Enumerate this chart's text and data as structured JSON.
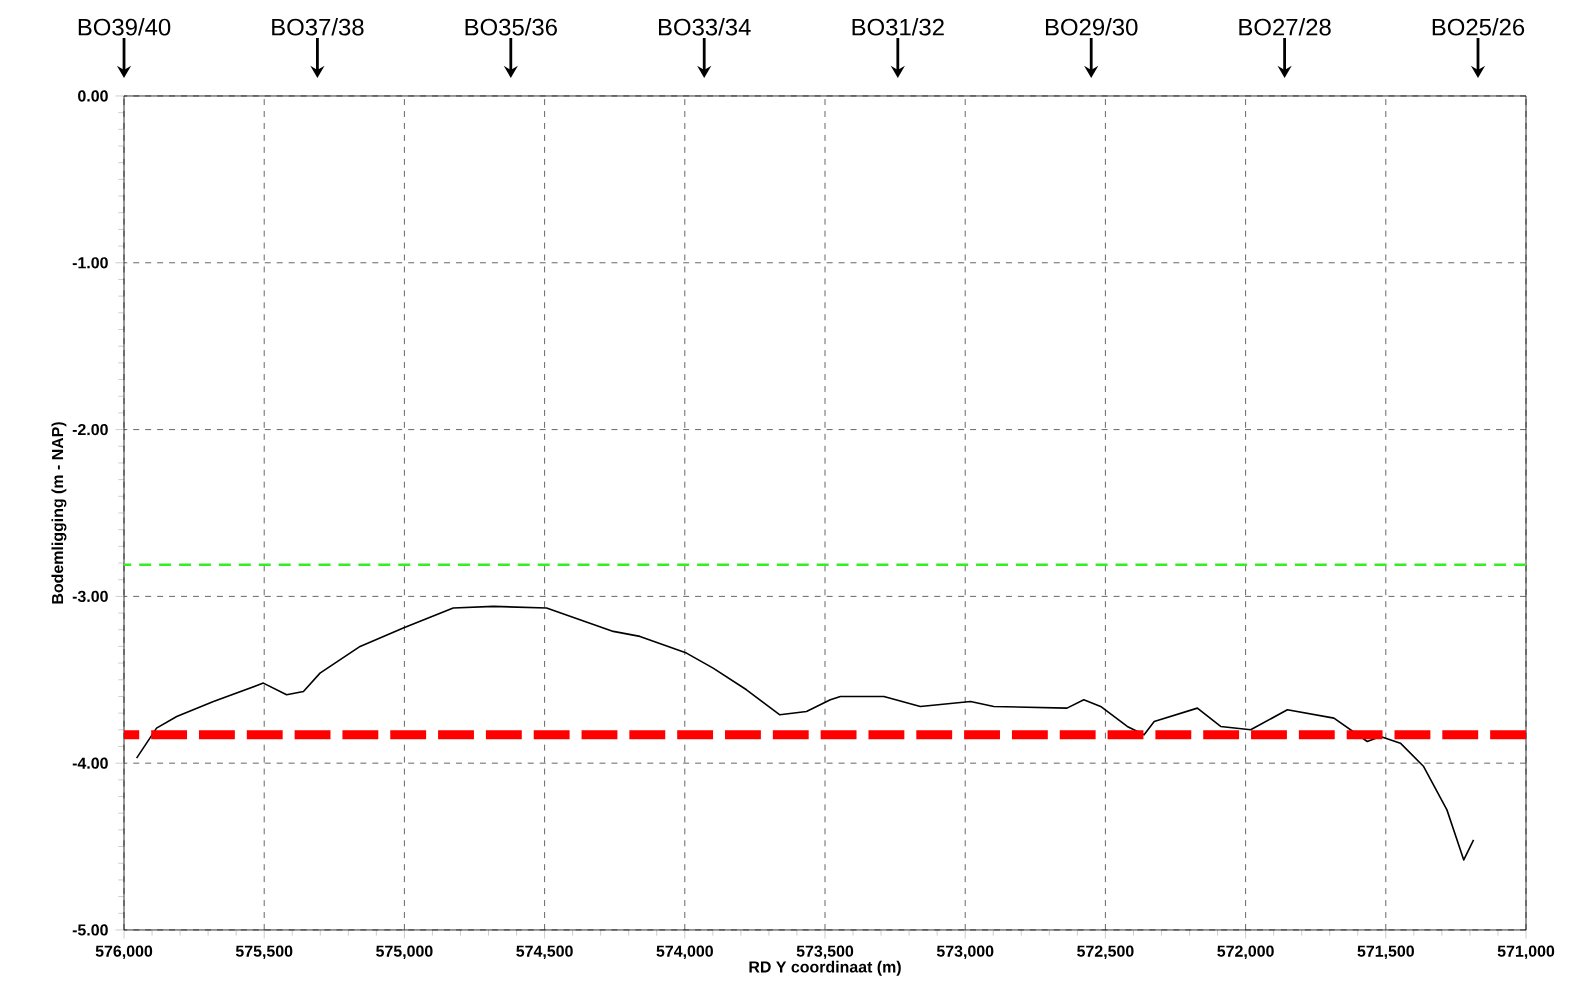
{
  "chart_data": {
    "type": "line",
    "xlabel": "RD Y coordinaat (m)",
    "ylabel": "Bodemligging (m - NAP)",
    "xlim": [
      576000,
      571000
    ],
    "xticks": [
      {
        "value": 576000,
        "label": "576,000"
      },
      {
        "value": 575500,
        "label": "575,500"
      },
      {
        "value": 575000,
        "label": "575,000"
      },
      {
        "value": 574500,
        "label": "574,500"
      },
      {
        "value": 574000,
        "label": "574,000"
      },
      {
        "value": 573500,
        "label": "573,500"
      },
      {
        "value": 573000,
        "label": "573,000"
      },
      {
        "value": 572500,
        "label": "572,500"
      },
      {
        "value": 572000,
        "label": "572,000"
      },
      {
        "value": 571500,
        "label": "571,500"
      },
      {
        "value": 571000,
        "label": "571,000"
      }
    ],
    "ylim": [
      -5,
      0
    ],
    "yticks": [
      {
        "value": 0,
        "label": "0.00"
      },
      {
        "value": -1,
        "label": "-1.00"
      },
      {
        "value": -2,
        "label": "-2.00"
      },
      {
        "value": -3,
        "label": "-3.00"
      },
      {
        "value": -4,
        "label": "-4.00"
      },
      {
        "value": -5,
        "label": "-5.00"
      }
    ],
    "grid": true,
    "series": [
      {
        "color": "#000000",
        "x": [
          575955,
          575884,
          575812,
          575681,
          575503,
          575420,
          575360,
          575301,
          575158,
          575004,
          574826,
          574683,
          574493,
          574255,
          574160,
          573994,
          573899,
          573780,
          573661,
          573566,
          573481,
          573445,
          573290,
          573160,
          572981,
          572898,
          572637,
          572577,
          572517,
          572422,
          572362,
          572326,
          572172,
          572089,
          571982,
          571851,
          571685,
          571566,
          571519,
          571448,
          571365,
          571282,
          571222,
          571187
        ],
        "values": [
          -3.97,
          -3.79,
          -3.72,
          -3.63,
          -3.52,
          -3.59,
          -3.57,
          -3.46,
          -3.3,
          -3.19,
          -3.07,
          -3.06,
          -3.07,
          -3.21,
          -3.24,
          -3.34,
          -3.43,
          -3.56,
          -3.71,
          -3.69,
          -3.62,
          -3.6,
          -3.6,
          -3.66,
          -3.63,
          -3.66,
          -3.67,
          -3.62,
          -3.66,
          -3.78,
          -3.83,
          -3.75,
          -3.67,
          -3.78,
          -3.8,
          -3.68,
          -3.73,
          -3.87,
          -3.84,
          -3.88,
          -4.02,
          -4.28,
          -4.58,
          -4.46
        ]
      }
    ],
    "ref_lines": [
      {
        "axis": "y",
        "value": -2.81,
        "color": "#33ee22",
        "line_style": "dashed"
      },
      {
        "axis": "y",
        "value": -3.83,
        "color": "#ff0000",
        "line_style": "dashed"
      }
    ],
    "annotations": [
      "BO39/40",
      "BO37/38",
      "BO35/36",
      "BO33/34",
      "BO31/32",
      "BO29/30",
      "BO27/28",
      "BO25/26"
    ]
  }
}
